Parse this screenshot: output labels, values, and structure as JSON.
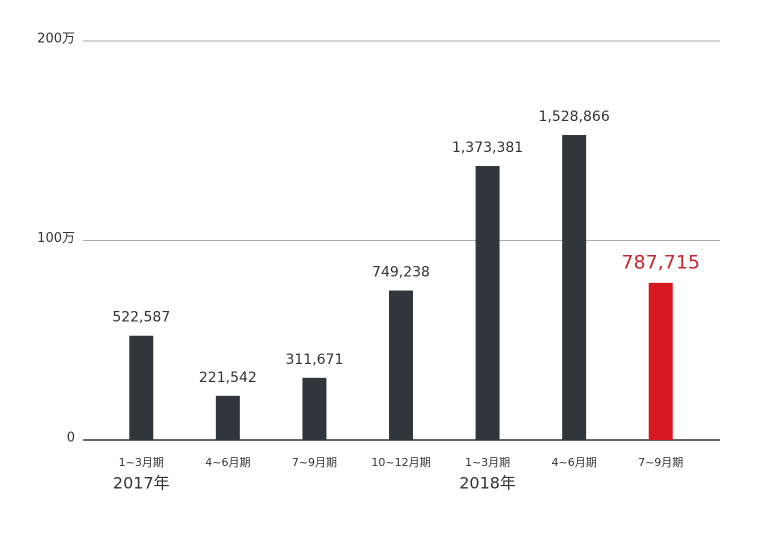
{
  "chart_data": {
    "type": "bar",
    "categories": [
      "1~3月期",
      "4~6月期",
      "7~9月期",
      "10~12月期",
      "1~3月期",
      "4~6月期",
      "7~9月期"
    ],
    "group_labels": [
      "2017年",
      null,
      null,
      null,
      "2018年",
      null,
      null
    ],
    "values": [
      522587,
      221542,
      311671,
      749238,
      1373381,
      1528866,
      787715
    ],
    "value_labels": [
      "522,587",
      "221,542",
      "311,671",
      "749,238",
      "1,373,381",
      "1,528,866",
      "787,715"
    ],
    "colors": [
      "#31363d",
      "#31363d",
      "#31363d",
      "#31363d",
      "#31363d",
      "#31363d",
      "#d7191f"
    ],
    "label_colors": [
      "#333333",
      "#333333",
      "#333333",
      "#333333",
      "#333333",
      "#333333",
      "#c8282d"
    ],
    "ylim": [
      0,
      2000000
    ],
    "yticks": [
      0,
      {
        "value": 1000000,
        "label": "100万"
      },
      {
        "value": 2000000,
        "label": "200万"
      }
    ],
    "grid": true
  }
}
